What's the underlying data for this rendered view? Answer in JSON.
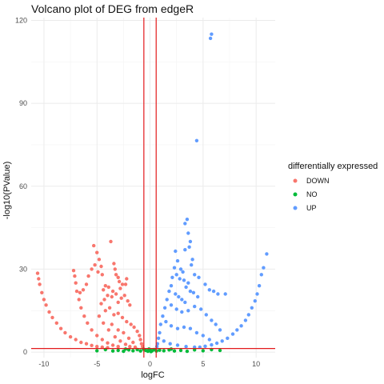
{
  "chart_data": {
    "type": "scatter",
    "title": "Volcano plot of DEG from edgeR",
    "xlabel": "logFC",
    "ylabel": "-log10(PValue)",
    "xlim": [
      -11.2,
      11.8
    ],
    "ylim": [
      -2,
      121
    ],
    "x_ticks": [
      -10,
      -5,
      0,
      5,
      10
    ],
    "y_ticks": [
      0,
      30,
      60,
      90,
      120
    ],
    "grid": true,
    "legend": {
      "title": "differentially expressed",
      "position": "right",
      "entries": [
        {
          "label": "DOWN",
          "color": "#F8766D"
        },
        {
          "label": "NO",
          "color": "#00BA38"
        },
        {
          "label": "UP",
          "color": "#619CFF"
        }
      ]
    },
    "threshold_lines": {
      "color": "#e31a1c",
      "vertical_x": [
        -0.58,
        0.58
      ],
      "horizontal_y": [
        1.3
      ]
    },
    "series": [
      {
        "name": "DOWN",
        "color": "#F8766D",
        "points": [
          [
            -10.6,
            28.5
          ],
          [
            -10.5,
            26.5
          ],
          [
            -10.4,
            24.5
          ],
          [
            -10.2,
            21.5
          ],
          [
            -10.0,
            19.0
          ],
          [
            -9.8,
            17.0
          ],
          [
            -9.5,
            14.5
          ],
          [
            -9.2,
            12.5
          ],
          [
            -8.8,
            10.5
          ],
          [
            -8.4,
            8.5
          ],
          [
            -8.0,
            7.0
          ],
          [
            -7.5,
            5.5
          ],
          [
            -7.0,
            4.5
          ],
          [
            -6.5,
            3.5
          ],
          [
            -6.0,
            3.0
          ],
          [
            -5.5,
            2.4
          ],
          [
            -5.0,
            2.0
          ],
          [
            -4.5,
            1.8
          ],
          [
            -4.0,
            1.6
          ],
          [
            -7.2,
            29.5
          ],
          [
            -7.1,
            27.5
          ],
          [
            -7.0,
            25.0
          ],
          [
            -6.9,
            22.0
          ],
          [
            -6.7,
            19.0
          ],
          [
            -6.5,
            16.0
          ],
          [
            -6.2,
            13.0
          ],
          [
            -5.9,
            10.5
          ],
          [
            -5.5,
            8.0
          ],
          [
            -5.0,
            6.0
          ],
          [
            -4.5,
            4.5
          ],
          [
            -4.0,
            3.3
          ],
          [
            -3.5,
            2.5
          ],
          [
            -3.0,
            2.0
          ],
          [
            -5.3,
            38.5
          ],
          [
            -5.0,
            36.0
          ],
          [
            -4.8,
            33.5
          ],
          [
            -5.2,
            31.5
          ],
          [
            -4.6,
            31.0
          ],
          [
            -5.5,
            30.0
          ],
          [
            -4.9,
            29.0
          ],
          [
            -4.5,
            28.0
          ],
          [
            -5.8,
            27.5
          ],
          [
            -6.0,
            24.5
          ],
          [
            -6.3,
            22.5
          ],
          [
            -6.6,
            21.5
          ],
          [
            -3.7,
            40.0
          ],
          [
            -3.4,
            32.0
          ],
          [
            -3.3,
            30.0
          ],
          [
            -3.2,
            28.0
          ],
          [
            -3.0,
            27.0
          ],
          [
            -2.9,
            25.5
          ],
          [
            -2.6,
            24.5
          ],
          [
            -2.3,
            24.5
          ],
          [
            -2.2,
            26.5
          ],
          [
            -2.8,
            23.0
          ],
          [
            -3.5,
            22.0
          ],
          [
            -3.9,
            23.5
          ],
          [
            -4.2,
            24.0
          ],
          [
            -4.4,
            22.5
          ],
          [
            -4.0,
            20.5
          ],
          [
            -3.6,
            20.0
          ],
          [
            -3.2,
            21.0
          ],
          [
            -3.0,
            18.0
          ],
          [
            -2.7,
            19.5
          ],
          [
            -2.4,
            20.5
          ],
          [
            -2.1,
            18.5
          ],
          [
            -1.9,
            17.0
          ],
          [
            -4.3,
            19.0
          ],
          [
            -4.6,
            17.5
          ],
          [
            -4.2,
            15.0
          ],
          [
            -3.8,
            16.0
          ],
          [
            -3.4,
            13.5
          ],
          [
            -3.0,
            14.0
          ],
          [
            -2.6,
            12.5
          ],
          [
            -2.2,
            11.0
          ],
          [
            -1.8,
            10.0
          ],
          [
            -1.5,
            9.0
          ],
          [
            -1.2,
            7.5
          ],
          [
            -1.0,
            6.0
          ],
          [
            -0.9,
            4.5
          ],
          [
            -0.8,
            3.0
          ],
          [
            -0.7,
            2.0
          ],
          [
            -3.6,
            10.0
          ],
          [
            -3.0,
            8.0
          ],
          [
            -2.5,
            7.0
          ],
          [
            -2.0,
            5.0
          ],
          [
            -1.6,
            3.5
          ],
          [
            -4.8,
            13.0
          ],
          [
            -4.4,
            10.5
          ],
          [
            -3.9,
            8.0
          ],
          [
            -3.3,
            5.5
          ],
          [
            -2.8,
            4.0
          ],
          [
            -2.3,
            2.8
          ],
          [
            -1.9,
            2.0
          ],
          [
            -1.4,
            1.8
          ]
        ]
      },
      {
        "name": "NO",
        "color": "#00BA38",
        "points": [
          [
            -3.5,
            0.4
          ],
          [
            -3.0,
            0.6
          ],
          [
            -2.5,
            0.3
          ],
          [
            -2.0,
            0.8
          ],
          [
            -1.6,
            0.5
          ],
          [
            -1.2,
            0.9
          ],
          [
            -0.9,
            0.4
          ],
          [
            -0.6,
            1.0
          ],
          [
            -0.4,
            0.6
          ],
          [
            -0.2,
            0.3
          ],
          [
            0.0,
            0.8
          ],
          [
            0.2,
            0.5
          ],
          [
            0.4,
            0.9
          ],
          [
            0.6,
            0.4
          ],
          [
            0.9,
            0.7
          ],
          [
            1.3,
            0.5
          ],
          [
            1.8,
            0.8
          ],
          [
            2.3,
            0.4
          ],
          [
            2.9,
            0.6
          ],
          [
            3.5,
            0.3
          ],
          [
            4.2,
            0.8
          ],
          [
            5.0,
            0.5
          ],
          [
            5.8,
            0.9
          ],
          [
            6.6,
            0.6
          ],
          [
            -4.2,
            0.9
          ],
          [
            -5.0,
            0.5
          ],
          [
            -0.1,
            1.1
          ],
          [
            0.1,
            0.2
          ],
          [
            -2.3,
            1.1
          ],
          [
            2.0,
            1.1
          ]
        ]
      },
      {
        "name": "UP",
        "color": "#619CFF",
        "points": [
          [
            5.8,
            115.0
          ],
          [
            5.7,
            113.5
          ],
          [
            4.4,
            76.5
          ],
          [
            3.5,
            48.0
          ],
          [
            3.3,
            46.5
          ],
          [
            3.6,
            43.0
          ],
          [
            3.8,
            40.0
          ],
          [
            3.7,
            38.0
          ],
          [
            3.3,
            37.0
          ],
          [
            4.0,
            33.5
          ],
          [
            3.9,
            31.5
          ],
          [
            4.2,
            28.0
          ],
          [
            4.6,
            27.0
          ],
          [
            5.2,
            24.5
          ],
          [
            5.6,
            22.5
          ],
          [
            6.0,
            22.0
          ],
          [
            6.4,
            21.0
          ],
          [
            7.1,
            21.0
          ],
          [
            2.4,
            36.5
          ],
          [
            2.6,
            33.0
          ],
          [
            2.3,
            30.5
          ],
          [
            2.9,
            30.0
          ],
          [
            3.1,
            29.0
          ],
          [
            2.5,
            28.0
          ],
          [
            2.1,
            27.0
          ],
          [
            2.8,
            26.5
          ],
          [
            3.2,
            26.0
          ],
          [
            3.6,
            25.0
          ],
          [
            3.4,
            23.5
          ],
          [
            3.8,
            22.0
          ],
          [
            4.1,
            21.5
          ],
          [
            4.5,
            20.0
          ],
          [
            2.0,
            24.0
          ],
          [
            1.8,
            22.0
          ],
          [
            2.4,
            21.0
          ],
          [
            2.7,
            20.0
          ],
          [
            3.0,
            19.0
          ],
          [
            3.3,
            18.0
          ],
          [
            1.6,
            19.0
          ],
          [
            1.4,
            16.0
          ],
          [
            2.0,
            17.0
          ],
          [
            2.5,
            15.5
          ],
          [
            3.0,
            14.5
          ],
          [
            3.6,
            15.0
          ],
          [
            4.2,
            16.5
          ],
          [
            4.8,
            15.5
          ],
          [
            5.3,
            13.5
          ],
          [
            5.8,
            11.5
          ],
          [
            6.2,
            10.0
          ],
          [
            6.6,
            8.0
          ],
          [
            1.2,
            13.0
          ],
          [
            1.0,
            10.0
          ],
          [
            1.5,
            11.0
          ],
          [
            2.0,
            9.5
          ],
          [
            2.6,
            8.5
          ],
          [
            3.2,
            9.0
          ],
          [
            3.8,
            8.5
          ],
          [
            4.4,
            7.0
          ],
          [
            5.0,
            6.0
          ],
          [
            5.6,
            4.5
          ],
          [
            0.9,
            7.0
          ],
          [
            0.8,
            5.0
          ],
          [
            0.7,
            3.0
          ],
          [
            0.65,
            2.0
          ],
          [
            1.3,
            4.0
          ],
          [
            1.9,
            3.0
          ],
          [
            2.6,
            2.5
          ],
          [
            3.4,
            2.0
          ],
          [
            4.2,
            1.8
          ],
          [
            11.0,
            35.5
          ],
          [
            10.7,
            30.5
          ],
          [
            10.5,
            28.0
          ],
          [
            10.3,
            24.0
          ],
          [
            10.1,
            21.0
          ],
          [
            9.9,
            18.5
          ],
          [
            9.6,
            16.0
          ],
          [
            9.3,
            13.5
          ],
          [
            9.0,
            11.5
          ],
          [
            8.6,
            9.5
          ],
          [
            8.2,
            8.0
          ],
          [
            7.8,
            6.5
          ],
          [
            7.3,
            5.0
          ],
          [
            6.8,
            4.0
          ],
          [
            6.3,
            3.2
          ],
          [
            5.8,
            2.6
          ],
          [
            5.2,
            2.1
          ],
          [
            4.7,
            1.8
          ]
        ]
      }
    ]
  }
}
